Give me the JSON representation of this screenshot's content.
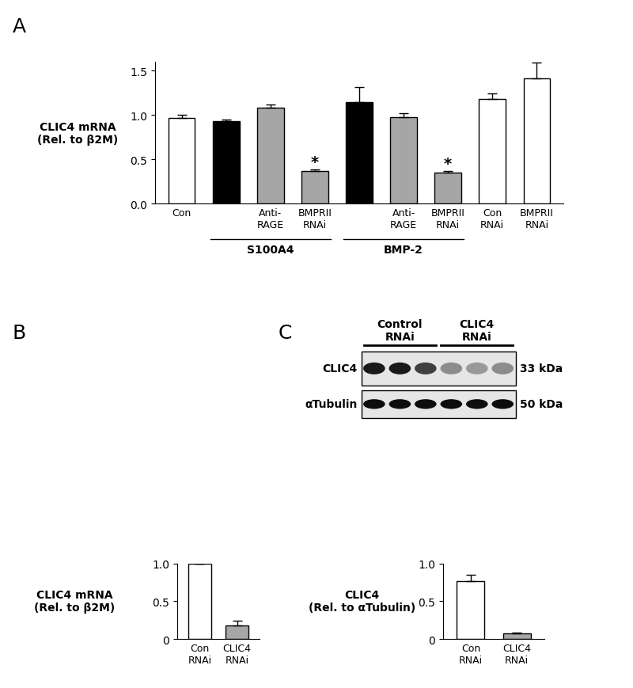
{
  "chart_data": [
    {
      "panel": "A",
      "type": "bar",
      "y_label": "CLIC4 mRNA\n(Rel. to β2M)",
      "categories": [
        "Con",
        null,
        "Anti-\nRAGE",
        "BMPRII\nRNAi",
        null,
        "Anti-\nRAGE",
        "BMPRII\nRNAi",
        "Con\nRNAi",
        "BMPRII\nRNAi"
      ],
      "values": [
        0.97,
        0.93,
        1.08,
        0.37,
        1.15,
        0.98,
        0.35,
        1.18,
        1.41
      ],
      "errors": [
        0.03,
        0.02,
        0.04,
        0.02,
        0.17,
        0.04,
        0.02,
        0.06,
        0.18
      ],
      "colors": [
        "#ffffff",
        "#000000",
        "#a6a6a6",
        "#a6a6a6",
        "#000000",
        "#a6a6a6",
        "#a6a6a6",
        "#ffffff",
        "#ffffff"
      ],
      "groups": [
        {
          "label": "S100A4",
          "first": 1,
          "last": 3
        },
        {
          "label": "BMP-2",
          "first": 4,
          "last": 6
        }
      ],
      "annotations": [
        {
          "index": 3,
          "text": "*"
        },
        {
          "index": 6,
          "text": "*"
        }
      ],
      "ylim": [
        0,
        1.6
      ],
      "yticks": [
        {
          "value": 0,
          "label": "0.0"
        },
        0.5,
        {
          "value": 1,
          "label": "1.0"
        },
        1.5
      ]
    },
    {
      "panel": "B",
      "type": "bar",
      "y_label": "CLIC4 mRNA\n(Rel. to β2M)",
      "categories": [
        "Con\nRNAi",
        "CLIC4\nRNAi"
      ],
      "values": [
        1.0,
        0.18
      ],
      "errors": [
        0,
        0.06
      ],
      "colors": [
        "#ffffff",
        "#a6a6a6"
      ],
      "ylim": [
        0,
        1.0
      ],
      "yticks": [
        0,
        0.5,
        1.0
      ]
    },
    {
      "panel": "C",
      "type": "bar",
      "y_label": "CLIC4\n(Rel. to αTubulin)",
      "categories": [
        "Con\nRNAi",
        "CLIC4\nRNAi"
      ],
      "values": [
        0.76,
        0.08
      ],
      "errors": [
        0.09,
        0.01
      ],
      "colors": [
        "#ffffff",
        "#a6a6a6"
      ],
      "ylim": [
        0,
        1.0
      ],
      "yticks": [
        0,
        0.5,
        1.0
      ]
    }
  ],
  "blot": {
    "lane_groups": [
      {
        "label": "Control\nRNAi",
        "lanes": [
          0,
          1,
          2
        ]
      },
      {
        "label": "CLIC4\nRNAi",
        "lanes": [
          3,
          4,
          5
        ]
      }
    ],
    "rows": [
      {
        "label": "CLIC4",
        "size": "33 kDa",
        "intensities": [
          0.9,
          0.9,
          0.75,
          0.45,
          0.4,
          0.45
        ]
      },
      {
        "label": "αTubulin",
        "size": "50 kDa",
        "intensities": [
          0.95,
          0.95,
          0.95,
          0.95,
          0.95,
          0.95
        ]
      }
    ]
  }
}
